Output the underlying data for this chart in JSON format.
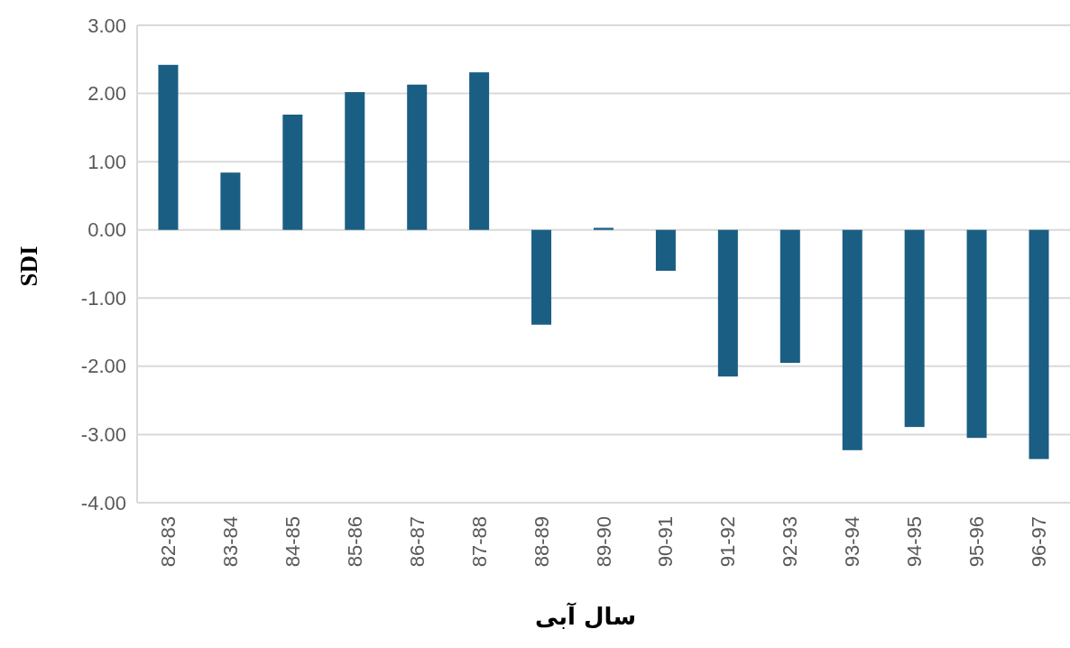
{
  "chart_data": {
    "type": "bar",
    "xlabel": "سال آبی",
    "ylabel": "SDI",
    "categories": [
      "82-83",
      "83-84",
      "84-85",
      "85-86",
      "86-87",
      "87-88",
      "88-89",
      "89-90",
      "90-91",
      "91-92",
      "92-93",
      "93-94",
      "94-95",
      "95-96",
      "96-97"
    ],
    "values": [
      2.42,
      0.84,
      1.69,
      2.02,
      2.13,
      2.31,
      -1.39,
      0.03,
      -0.6,
      -2.15,
      -1.95,
      -3.23,
      -2.89,
      -3.05,
      -3.36
    ],
    "color": "#1a5e83",
    "ylim": [
      -4,
      3
    ],
    "yticks": [
      {
        "value": -4,
        "label": "-4.00"
      },
      {
        "value": -3,
        "label": "-3.00"
      },
      {
        "value": -2,
        "label": "-2.00"
      },
      {
        "value": -1,
        "label": "-1.00"
      },
      {
        "value": 0,
        "label": "0.00"
      },
      {
        "value": 1,
        "label": "1.00"
      },
      {
        "value": 2,
        "label": "2.00"
      },
      {
        "value": 3,
        "label": "3.00"
      }
    ],
    "grid": "y"
  }
}
